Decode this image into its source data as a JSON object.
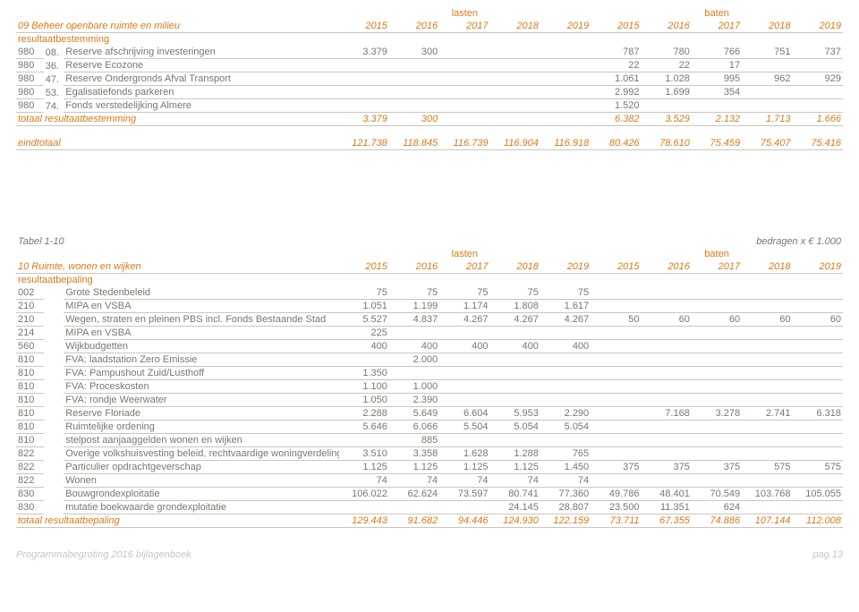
{
  "superheaders": {
    "lasten": "lasten",
    "baten": "baten"
  },
  "years": [
    "2015",
    "2016",
    "2017",
    "2018",
    "2019",
    "2015",
    "2016",
    "2017",
    "2018",
    "2019"
  ],
  "top": {
    "title": "09 Beheer openbare ruimte en milieu",
    "section": "resultaatbestemming",
    "rows": [
      {
        "code": "980",
        "sub": "08.",
        "label": "Reserve afschrijving investeringen",
        "v": [
          "3.379",
          "300",
          "",
          "",
          "",
          "787",
          "780",
          "766",
          "751",
          "737"
        ]
      },
      {
        "code": "980",
        "sub": "36.",
        "label": "Reserve Ecozone",
        "v": [
          "",
          "",
          "",
          "",
          "",
          "22",
          "22",
          "17",
          "",
          ""
        ]
      },
      {
        "code": "980",
        "sub": "47.",
        "label": "Reserve Ondergronds Afval Transport",
        "v": [
          "",
          "",
          "",
          "",
          "",
          "1.061",
          "1.028",
          "995",
          "962",
          "929"
        ]
      },
      {
        "code": "980",
        "sub": "53.",
        "label": "Egalisatiefonds parkeren",
        "v": [
          "",
          "",
          "",
          "",
          "",
          "2.992",
          "1.699",
          "354",
          "",
          ""
        ]
      },
      {
        "code": "980",
        "sub": "74.",
        "label": "Fonds verstedelijking Almere",
        "v": [
          "",
          "",
          "",
          "",
          "",
          "1.520",
          "",
          "",
          "",
          ""
        ]
      }
    ],
    "total": {
      "label": "totaal resultaatbestemming",
      "v": [
        "3.379",
        "300",
        "",
        "",
        "",
        "6.382",
        "3.529",
        "2.132",
        "1.713",
        "1.666"
      ]
    },
    "eind": {
      "label": "eindtotaal",
      "v": [
        "121.738",
        "118.845",
        "116.739",
        "116.904",
        "116.918",
        "80.426",
        "78.610",
        "75.459",
        "75.407",
        "75.416"
      ]
    }
  },
  "bottom": {
    "tabel": "Tabel 1-10",
    "unit": "bedragen x € 1.000",
    "title": "10 Ruimte, wonen en wijken",
    "section": "resultaatbepaling",
    "rows": [
      {
        "code": "002",
        "label": "Grote Stedenbeleid",
        "v": [
          "75",
          "75",
          "75",
          "75",
          "75",
          "",
          "",
          "",
          "",
          ""
        ]
      },
      {
        "code": "210",
        "label": "MIPA en VSBA",
        "v": [
          "1.051",
          "1.199",
          "1.174",
          "1.808",
          "1.617",
          "",
          "",
          "",
          "",
          ""
        ]
      },
      {
        "code": "210",
        "label": "Wegen, straten en pleinen PBS incl. Fonds Bestaande Stad",
        "v": [
          "5.527",
          "4.837",
          "4.267",
          "4.267",
          "4.267",
          "50",
          "60",
          "60",
          "60",
          "60"
        ]
      },
      {
        "code": "214",
        "label": "MIPA en VSBA",
        "v": [
          "225",
          "",
          "",
          "",
          "",
          "",
          "",
          "",
          "",
          ""
        ]
      },
      {
        "code": "560",
        "label": "Wijkbudgetten",
        "v": [
          "400",
          "400",
          "400",
          "400",
          "400",
          "",
          "",
          "",
          "",
          ""
        ]
      },
      {
        "code": "810",
        "label": "FVA: laadstation Zero Emissie",
        "v": [
          "",
          "2.000",
          "",
          "",
          "",
          "",
          "",
          "",
          "",
          ""
        ]
      },
      {
        "code": "810",
        "label": "FVA: Pampushout Zuid/Lusthoff",
        "v": [
          "1.350",
          "",
          "",
          "",
          "",
          "",
          "",
          "",
          "",
          ""
        ]
      },
      {
        "code": "810",
        "label": "FVA: Proceskosten",
        "v": [
          "1.100",
          "1.000",
          "",
          "",
          "",
          "",
          "",
          "",
          "",
          ""
        ]
      },
      {
        "code": "810",
        "label": "FVA: rondje Weerwater",
        "v": [
          "1.050",
          "2.390",
          "",
          "",
          "",
          "",
          "",
          "",
          "",
          ""
        ]
      },
      {
        "code": "810",
        "label": "Reserve Floriade",
        "v": [
          "2.288",
          "5.649",
          "6.604",
          "5.953",
          "2.290",
          "",
          "7.168",
          "3.278",
          "2.741",
          "6.318"
        ]
      },
      {
        "code": "810",
        "label": "Ruimtelijke ordening",
        "v": [
          "5.646",
          "6.066",
          "5.504",
          "5.054",
          "5.054",
          "",
          "",
          "",
          "",
          ""
        ]
      },
      {
        "code": "810",
        "label": "stelpost aanjaaggelden wonen en wijken",
        "v": [
          "",
          "885",
          "",
          "",
          "",
          "",
          "",
          "",
          "",
          ""
        ]
      },
      {
        "code": "822",
        "label": "Overige volkshuisvesting beleid, rechtvaardige woningverdeling",
        "v": [
          "3.510",
          "3.358",
          "1.628",
          "1.288",
          "765",
          "",
          "",
          "",
          "",
          ""
        ]
      },
      {
        "code": "822",
        "label": "Particulier opdrachtgeverschap",
        "v": [
          "1.125",
          "1.125",
          "1.125",
          "1.125",
          "1.450",
          "375",
          "375",
          "375",
          "575",
          "575"
        ]
      },
      {
        "code": "822",
        "label": "Wonen",
        "v": [
          "74",
          "74",
          "74",
          "74",
          "74",
          "",
          "",
          "",
          "",
          ""
        ]
      },
      {
        "code": "830",
        "label": "Bouwgrondexploitatie",
        "v": [
          "106.022",
          "62.624",
          "73.597",
          "80.741",
          "77.360",
          "49.786",
          "48.401",
          "70.549",
          "103.768",
          "105.055"
        ]
      },
      {
        "code": "830",
        "label": "mutatie boekwaarde grondexploitatie",
        "v": [
          "",
          "",
          "",
          "24.145",
          "28.807",
          "23.500",
          "11.351",
          "624",
          "",
          ""
        ]
      }
    ],
    "total": {
      "label": "totaal resultaatbepaling",
      "v": [
        "129.443",
        "91.682",
        "94.446",
        "124.930",
        "122.159",
        "73.711",
        "67.355",
        "74.886",
        "107.144",
        "112.008"
      ]
    }
  },
  "footer": {
    "left": "Programmabegroting 2016 bijlagenboek",
    "right": "pag.13"
  }
}
